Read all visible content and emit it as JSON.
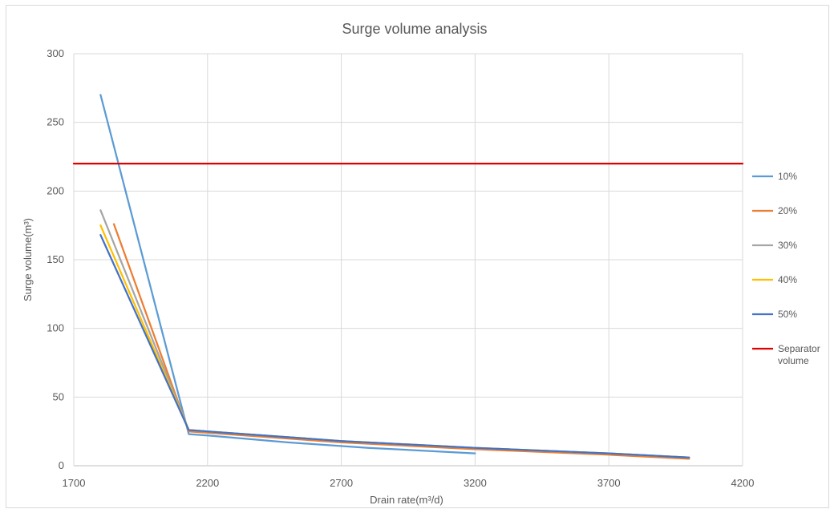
{
  "chart_data": {
    "type": "line",
    "title": "Surge volume analysis",
    "xlabel": "Drain rate(m³/d)",
    "ylabel": "Surge volume(m³)",
    "xlim": [
      1700,
      4200
    ],
    "ylim": [
      0,
      300
    ],
    "x_ticks": [
      "1700",
      "2200",
      "2700",
      "3200",
      "3700",
      "4200"
    ],
    "y_ticks": [
      "0",
      "50",
      "100",
      "150",
      "200",
      "250",
      "300"
    ],
    "grid": "vertical and horizontal",
    "legend_position": "right",
    "series": [
      {
        "name": "10%",
        "color": "#5b9bd5",
        "points": [
          [
            1800,
            270
          ],
          [
            2130,
            23
          ],
          [
            2200,
            22
          ],
          [
            2500,
            17
          ],
          [
            2800,
            13
          ],
          [
            3200,
            9
          ]
        ]
      },
      {
        "name": "20%",
        "color": "#ed7d31",
        "points": [
          [
            1850,
            176
          ],
          [
            2130,
            25
          ],
          [
            2200,
            24
          ],
          [
            2700,
            17
          ],
          [
            3200,
            12
          ],
          [
            3700,
            8
          ],
          [
            4000,
            5
          ]
        ]
      },
      {
        "name": "30%",
        "color": "#a5a5a5",
        "points": [
          [
            1800,
            186
          ],
          [
            2130,
            26
          ],
          [
            2200,
            25
          ],
          [
            2700,
            18
          ],
          [
            3200,
            13
          ],
          [
            3700,
            9
          ],
          [
            4000,
            6
          ]
        ]
      },
      {
        "name": "40%",
        "color": "#ffc000",
        "points": [
          [
            1800,
            175
          ],
          [
            2130,
            26
          ],
          [
            2200,
            25
          ],
          [
            2700,
            18
          ],
          [
            3200,
            13
          ],
          [
            3700,
            9
          ],
          [
            4000,
            6
          ]
        ]
      },
      {
        "name": "50%",
        "color": "#4472c4",
        "points": [
          [
            1800,
            168
          ],
          [
            2130,
            26
          ],
          [
            2200,
            25
          ],
          [
            2700,
            18
          ],
          [
            3200,
            13
          ],
          [
            3700,
            9
          ],
          [
            4000,
            6
          ]
        ]
      },
      {
        "name": "Separator volume",
        "name_lines": [
          "Separator",
          "volume"
        ],
        "color": "#e00000",
        "points": [
          [
            1700,
            220
          ],
          [
            4200,
            220
          ]
        ],
        "horizontal_line": true
      }
    ]
  }
}
